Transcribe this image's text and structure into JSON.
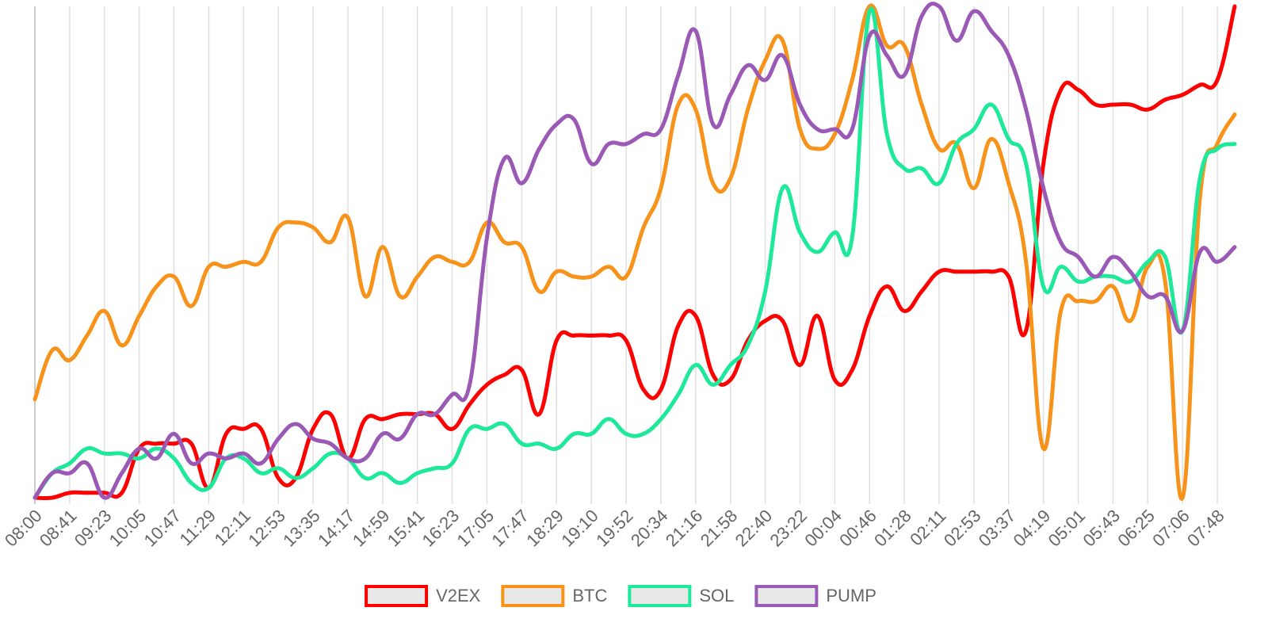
{
  "chart_data": {
    "type": "line",
    "categories": [
      "08:00",
      null,
      "08:41",
      null,
      "09:23",
      null,
      "10:05",
      null,
      "10:47",
      null,
      "11:29",
      null,
      "12:11",
      null,
      "12:53",
      null,
      "13:35",
      null,
      "14:17",
      null,
      "14:59",
      null,
      "15:41",
      null,
      "16:23",
      null,
      "17:05",
      null,
      "17:47",
      null,
      "18:29",
      null,
      "19:10",
      null,
      "19:52",
      null,
      "20:34",
      null,
      "21:16",
      null,
      "21:58",
      null,
      "22:40",
      null,
      "23:22",
      null,
      "00:04",
      null,
      "00:46",
      null,
      "01:28",
      null,
      "02:11",
      null,
      "02:53",
      null,
      "03:37",
      null,
      "04:19",
      null,
      "05:01",
      null,
      "05:43",
      null,
      "06:25",
      null,
      "07:06",
      null,
      "07:48",
      null
    ],
    "ylim": [
      0,
      100
    ],
    "grid": true,
    "legend": "bottom",
    "series": [
      {
        "name": "V2EX",
        "color": "#ff0000",
        "values": [
          0,
          0,
          1,
          1,
          1,
          1,
          10,
          11,
          11,
          11,
          2,
          13,
          14,
          14,
          4,
          4,
          14,
          17,
          8,
          16,
          16,
          17,
          17,
          17,
          14,
          19,
          23,
          25,
          26,
          17,
          32,
          33,
          33,
          33,
          32,
          22,
          22,
          35,
          37,
          25,
          24,
          32,
          36,
          36,
          27,
          37,
          24,
          26,
          37,
          43,
          38,
          42,
          46,
          46,
          46,
          46,
          45,
          34,
          68,
          83,
          83,
          80,
          80,
          80,
          79,
          81,
          82,
          84,
          85,
          100
        ]
      },
      {
        "name": "BTC",
        "color": "#f7931a",
        "values": [
          20,
          30,
          28,
          33,
          38,
          31,
          37,
          43,
          45,
          39,
          47,
          47,
          48,
          48,
          55,
          56,
          55,
          52,
          57,
          41,
          51,
          41,
          45,
          49,
          48,
          48,
          56,
          52,
          51,
          42,
          46,
          45,
          45,
          47,
          45,
          55,
          63,
          80,
          79,
          64,
          65,
          79,
          89,
          93,
          75,
          71,
          74,
          85,
          100,
          92,
          92,
          80,
          71,
          72,
          63,
          73,
          64,
          48,
          10,
          38,
          40,
          40,
          43,
          36,
          47,
          44,
          0,
          61,
          72,
          78
        ]
      },
      {
        "name": "SOL",
        "color": "#1ee99a",
        "values": [
          0,
          5,
          7,
          10,
          9,
          9,
          8,
          10,
          8,
          3,
          2,
          8,
          8,
          5,
          6,
          4,
          6,
          9,
          8,
          4,
          5,
          3,
          5,
          6,
          7,
          14,
          14,
          15,
          11,
          11,
          10,
          13,
          13,
          16,
          13,
          13,
          16,
          21,
          27,
          23,
          27,
          31,
          42,
          63,
          54,
          50,
          54,
          53,
          99,
          74,
          67,
          67,
          64,
          72,
          75,
          80,
          73,
          68,
          43,
          47,
          44,
          45,
          45,
          44,
          48,
          49,
          34,
          65,
          71,
          72
        ]
      },
      {
        "name": "PUMP",
        "color": "#9b59b6",
        "values": [
          0,
          5,
          5,
          7,
          0,
          5,
          10,
          8,
          13,
          7,
          9,
          8,
          9,
          7,
          12,
          15,
          12,
          11,
          8,
          8,
          13,
          12,
          17,
          17,
          21,
          23,
          53,
          69,
          64,
          71,
          76,
          77,
          68,
          72,
          72,
          74,
          75,
          86,
          95,
          76,
          82,
          88,
          85,
          90,
          80,
          75,
          75,
          75,
          94,
          90,
          86,
          98,
          100,
          93,
          99,
          95,
          90,
          79,
          63,
          52,
          49,
          45,
          49,
          46,
          41,
          41,
          34,
          50,
          48,
          51
        ]
      }
    ]
  }
}
